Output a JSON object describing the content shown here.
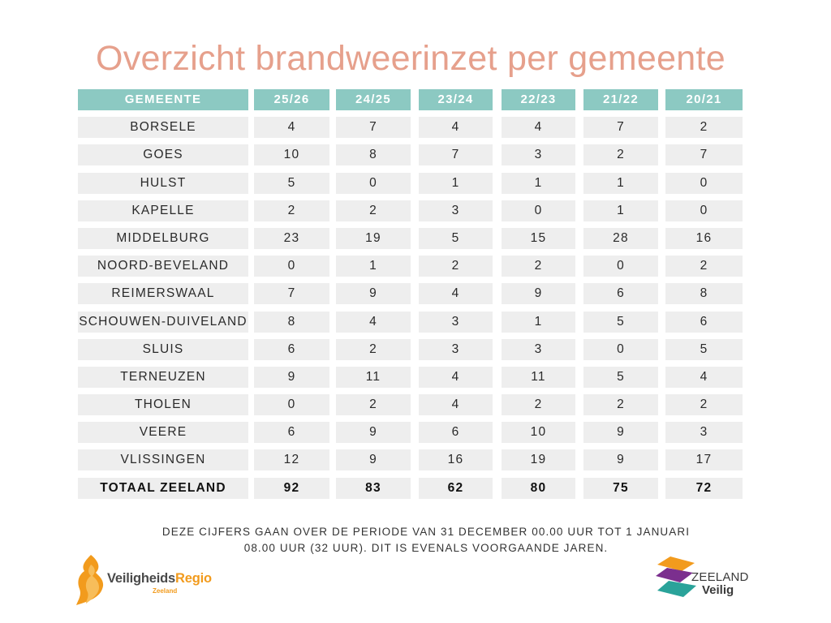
{
  "title": "Overzicht brandweerinzet per gemeente",
  "table": {
    "headers": [
      "GEMEENTE",
      "25/26",
      "24/25",
      "23/24",
      "22/23",
      "21/22",
      "20/21"
    ],
    "rows": [
      [
        "BORSELE",
        "4",
        "7",
        "4",
        "4",
        "7",
        "2"
      ],
      [
        "GOES",
        "10",
        "8",
        "7",
        "3",
        "2",
        "7"
      ],
      [
        "HULST",
        "5",
        "0",
        "1",
        "1",
        "1",
        "0"
      ],
      [
        "KAPELLE",
        "2",
        "2",
        "3",
        "0",
        "1",
        "0"
      ],
      [
        "MIDDELBURG",
        "23",
        "19",
        "5",
        "15",
        "28",
        "16"
      ],
      [
        "NOORD-BEVELAND",
        "0",
        "1",
        "2",
        "2",
        "0",
        "2"
      ],
      [
        "REIMERSWAAL",
        "7",
        "9",
        "4",
        "9",
        "6",
        "8"
      ],
      [
        "SCHOUWEN-DUIVELAND",
        "8",
        "4",
        "3",
        "1",
        "5",
        "6"
      ],
      [
        "SLUIS",
        "6",
        "2",
        "3",
        "3",
        "0",
        "5"
      ],
      [
        "TERNEUZEN",
        "9",
        "11",
        "4",
        "11",
        "5",
        "4"
      ],
      [
        "THOLEN",
        "0",
        "2",
        "4",
        "2",
        "2",
        "2"
      ],
      [
        "VEERE",
        "6",
        "9",
        "6",
        "10",
        "9",
        "3"
      ],
      [
        "VLISSINGEN",
        "12",
        "9",
        "16",
        "19",
        "9",
        "17"
      ]
    ],
    "total": [
      "TOTAAL ZEELAND",
      "92",
      "83",
      "62",
      "80",
      "75",
      "72"
    ]
  },
  "note": {
    "line1": "DEZE CIJFERS GAAN OVER DE PERIODE VAN 31 DECEMBER 00.00 UUR TOT 1 JANUARI",
    "line2": "08.00 UUR (32 UUR). DIT IS EVENALS VOORGAANDE JAREN."
  },
  "logos": {
    "left": {
      "name_part1": "Veiligheids",
      "name_part2": "Regio",
      "sub": "Zeeland"
    },
    "right": {
      "line1": "ZEELAND",
      "line2": "Veilig"
    }
  },
  "colors": {
    "title": "#e6a08c",
    "header_bg": "#8cc9c2",
    "cell_bg": "#eeeeee",
    "vr_orange": "#f29b1d"
  }
}
